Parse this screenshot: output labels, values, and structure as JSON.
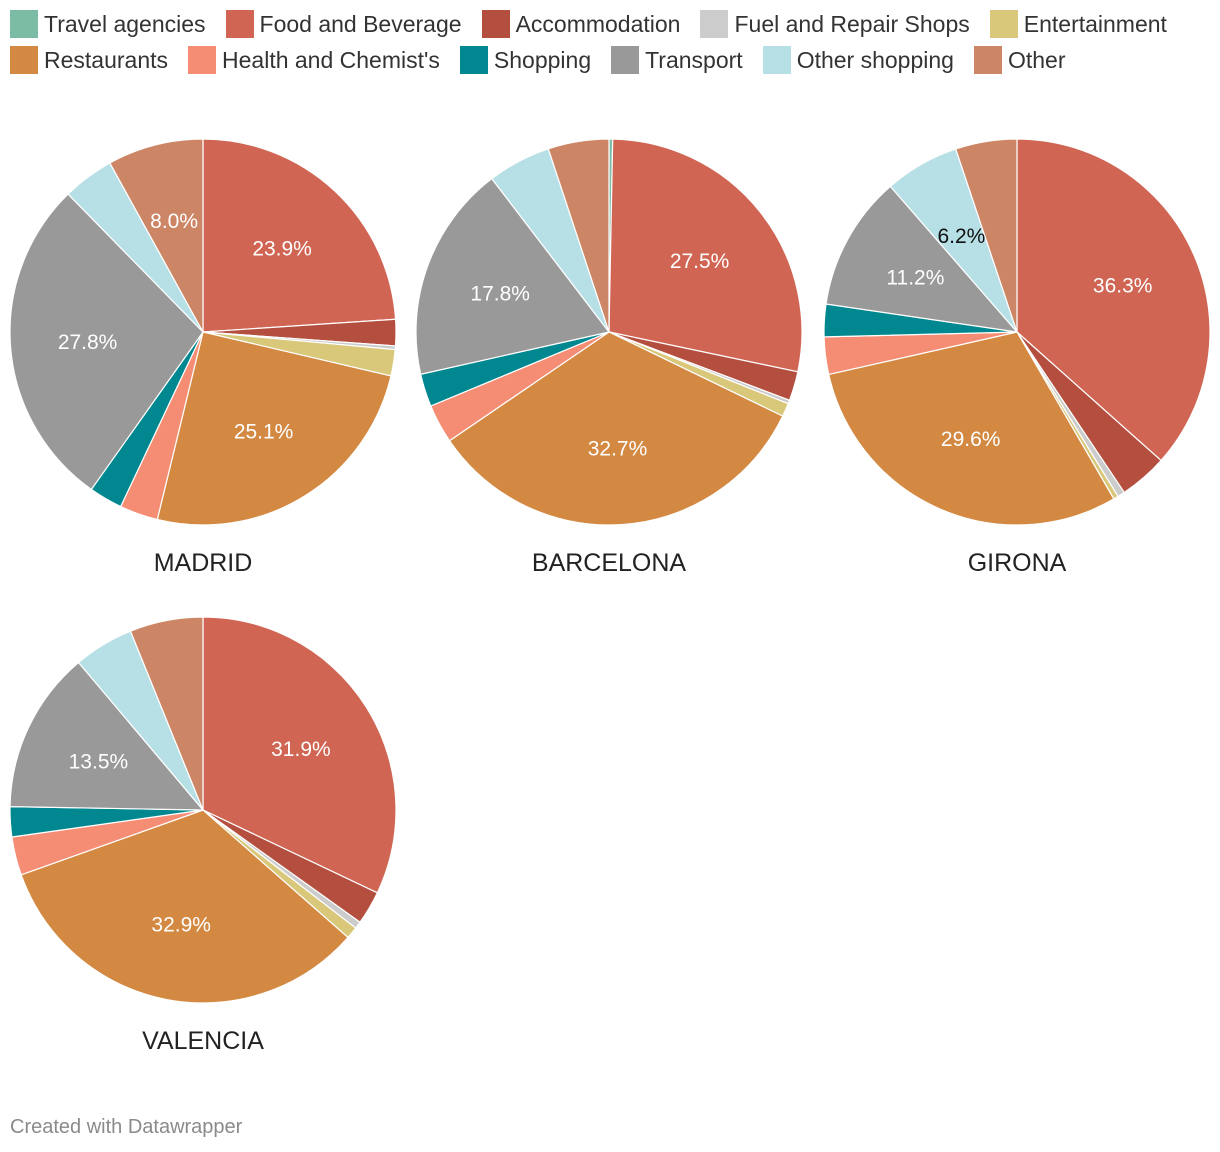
{
  "legend": [
    {
      "label": "Travel agencies",
      "color": "#7dbca4"
    },
    {
      "label": "Food and Beverage",
      "color": "#d06553"
    },
    {
      "label": "Accommodation",
      "color": "#b44f40"
    },
    {
      "label": "Fuel and Repair Shops",
      "color": "#cccccc"
    },
    {
      "label": "Entertainment",
      "color": "#d9c77a"
    },
    {
      "label": "Restaurants",
      "color": "#d38942"
    },
    {
      "label": "Health and Chemist's",
      "color": "#f58c74"
    },
    {
      "label": "Shopping",
      "color": "#00878f"
    },
    {
      "label": "Transport",
      "color": "#999999"
    },
    {
      "label": "Other shopping",
      "color": "#b7e0e6"
    },
    {
      "label": "Other",
      "color": "#cc8666"
    }
  ],
  "chart_data": [
    {
      "type": "pie",
      "title": "MADRID",
      "categories": [
        "Travel agencies",
        "Food and Beverage",
        "Accommodation",
        "Fuel and Repair Shops",
        "Entertainment",
        "Restaurants",
        "Health and Chemist's",
        "Shopping",
        "Transport",
        "Other shopping",
        "Other"
      ],
      "values": [
        0.0,
        23.9,
        2.2,
        0.3,
        2.2,
        25.1,
        3.2,
        2.8,
        27.8,
        4.3,
        8.0
      ],
      "labels": [
        "",
        "23.9%",
        "",
        "",
        "",
        "25.1%",
        "",
        "",
        "27.8%",
        "",
        "8.0%"
      ]
    },
    {
      "type": "pie",
      "title": "BARCELONA",
      "categories": [
        "Travel agencies",
        "Food and Beverage",
        "Accommodation",
        "Fuel and Repair Shops",
        "Entertainment",
        "Restaurants",
        "Health and Chemist's",
        "Shopping",
        "Transport",
        "Other shopping",
        "Other"
      ],
      "values": [
        0.3,
        27.5,
        2.4,
        0.3,
        1.1,
        32.7,
        3.2,
        2.7,
        17.8,
        5.2,
        5.0
      ],
      "labels": [
        "",
        "27.5%",
        "",
        "",
        "",
        "32.7%",
        "",
        "",
        "17.8%",
        "",
        ""
      ]
    },
    {
      "type": "pie",
      "title": "GIRONA",
      "categories": [
        "Travel agencies",
        "Food and Beverage",
        "Accommodation",
        "Fuel and Repair Shops",
        "Entertainment",
        "Restaurants",
        "Health and Chemist's",
        "Shopping",
        "Transport",
        "Other shopping",
        "Other"
      ],
      "values": [
        0.0,
        36.3,
        4.0,
        0.6,
        0.4,
        29.6,
        3.1,
        2.7,
        11.2,
        6.2,
        5.1
      ],
      "labels": [
        "",
        "36.3%",
        "",
        "",
        "",
        "29.6%",
        "",
        "",
        "11.2%",
        "6.2%",
        ""
      ]
    },
    {
      "type": "pie",
      "title": "VALENCIA",
      "categories": [
        "Travel agencies",
        "Food and Beverage",
        "Accommodation",
        "Fuel and Repair Shops",
        "Entertainment",
        "Restaurants",
        "Health and Chemist's",
        "Shopping",
        "Transport",
        "Other shopping",
        "Other"
      ],
      "values": [
        0.0,
        31.9,
        2.8,
        0.6,
        1.0,
        32.9,
        3.2,
        2.5,
        13.5,
        5.0,
        6.1
      ],
      "labels": [
        "",
        "31.9%",
        "",
        "",
        "",
        "32.9%",
        "",
        "",
        "13.5%",
        "",
        ""
      ]
    }
  ],
  "footer": "Created with Datawrapper"
}
